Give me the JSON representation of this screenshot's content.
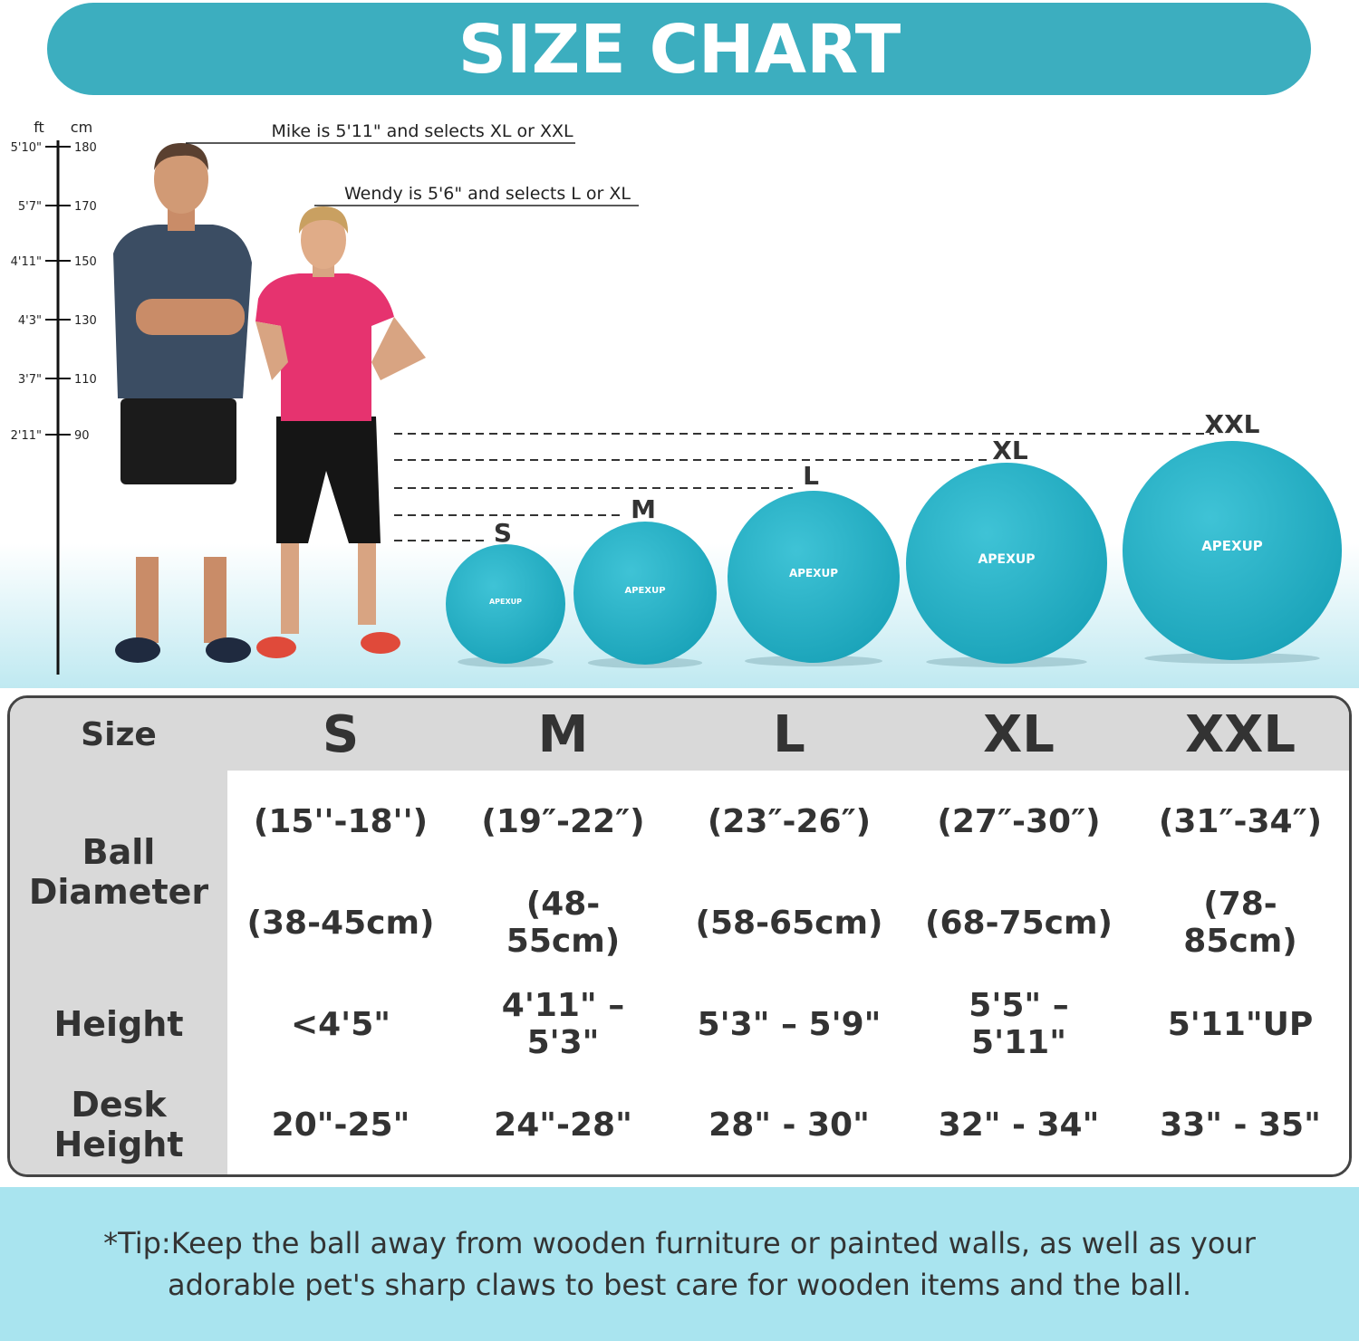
{
  "header": {
    "title": "SIZE CHART"
  },
  "scale": {
    "ft_label": "ft",
    "cm_label": "cm",
    "ticks": [
      {
        "ft": "5'10\"",
        "cm": 180
      },
      {
        "ft": "5'7\"",
        "cm": 170
      },
      {
        "ft": "4'11\"",
        "cm": 150
      },
      {
        "ft": "4'3\"",
        "cm": 130
      },
      {
        "ft": "3'7\"",
        "cm": 110
      },
      {
        "ft": "2'11\"",
        "cm": 90
      }
    ]
  },
  "annotations": [
    "Mike is 5'11\" and selects XL or XXL",
    "Wendy is 5'6\" and selects L or XL"
  ],
  "balls": {
    "brand": "APEXUP",
    "sizes": [
      "S",
      "M",
      "L",
      "XL",
      "XXL"
    ]
  },
  "table": {
    "header": [
      "Size",
      "S",
      "M",
      "L",
      "XL",
      "XXL"
    ],
    "ball_diameter": {
      "label": "Ball Diameter",
      "inches": [
        "(15''-18'')",
        "(19″-22″)",
        "(23″-26″)",
        "(27″-30″)",
        "(31″-34″)"
      ],
      "cm": [
        "(38-45cm)",
        "(48-55cm)",
        "(58-65cm)",
        "(68-75cm)",
        "(78-85cm)"
      ]
    },
    "height": {
      "label": "Height",
      "values": [
        "<4'5\"",
        "4'11\" – 5'3\"",
        "5'3\" – 5'9\"",
        "5'5\" – 5'11\"",
        "5'11\"UP"
      ]
    },
    "desk_height": {
      "label": "Desk Height",
      "values": [
        "20\"-25\"",
        "24\"-28\"",
        "28\" - 30\"",
        "32\" - 34\"",
        "33\" - 35\""
      ]
    }
  },
  "tip": "*Tip:Keep the ball away from wooden furniture or painted walls, as well as your adorable pet's sharp claws to best care for wooden items and the ball."
}
